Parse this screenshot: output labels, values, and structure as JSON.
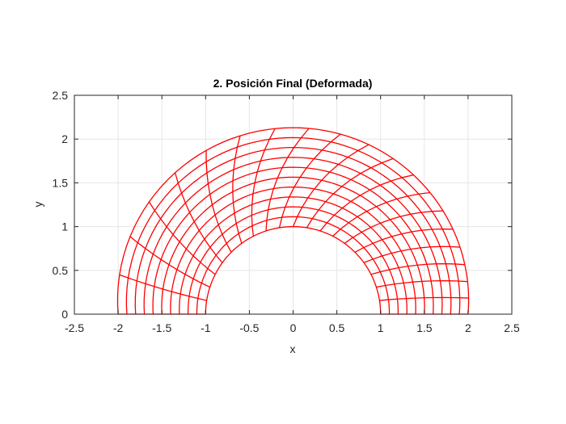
{
  "chart_data": {
    "type": "line",
    "title": "2. Posición Final (Deformada)",
    "xlabel": "x",
    "ylabel": "y",
    "xlim": [
      -2.5,
      2.5
    ],
    "ylim": [
      0,
      2.5
    ],
    "x_ticks": [
      -2.5,
      -2,
      -1.5,
      -1,
      -0.5,
      0,
      0.5,
      1,
      1.5,
      2,
      2.5
    ],
    "y_ticks": [
      0,
      0.5,
      1,
      1.5,
      2,
      2.5
    ],
    "x_tick_labels": [
      "-2.5",
      "-2",
      "-1.5",
      "-1",
      "-0.5",
      "0",
      "0.5",
      "1",
      "1.5",
      "2",
      "2.5"
    ],
    "y_tick_labels": [
      "0",
      "0.5",
      "1",
      "1.5",
      "2",
      "2.5"
    ],
    "grid": true,
    "mesh": {
      "inner_radius": 1.0,
      "outer_radius_left": 2.0,
      "outer_radius_top": 2.13,
      "outer_radius_right": 2.0,
      "radial_divisions": 10,
      "angular_divisions": 20,
      "shear_max_radians": 0.42,
      "color": "#ff0000"
    }
  }
}
